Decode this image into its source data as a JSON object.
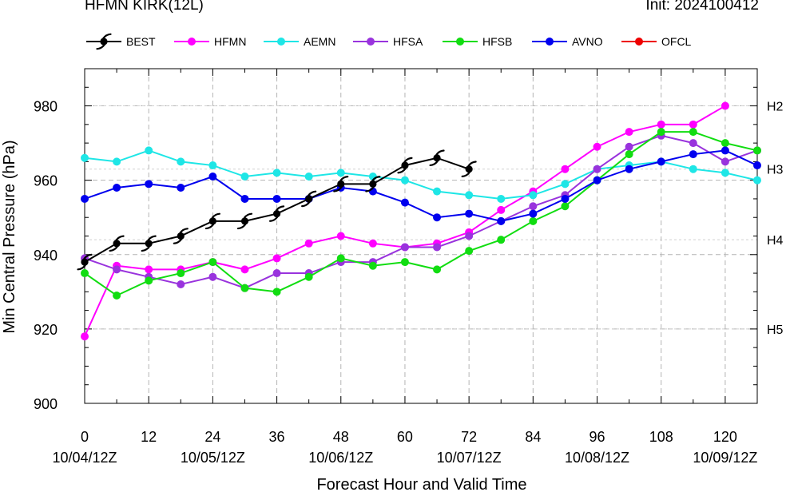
{
  "header": {
    "title": "HFMN KIRK(12L)",
    "init": "Init: 2024100412"
  },
  "chart_data": {
    "type": "line",
    "xlabel": "Forecast Hour and Valid Time",
    "ylabel": "Min Central Pressure (hPa)",
    "xlim": [
      0,
      126
    ],
    "ylim": [
      900,
      990
    ],
    "x_ticks": [
      0,
      12,
      24,
      36,
      48,
      60,
      72,
      84,
      96,
      108,
      120
    ],
    "x_tick_labels": [
      "0",
      "12",
      "24",
      "36",
      "48",
      "60",
      "72",
      "84",
      "96",
      "108",
      "120"
    ],
    "date_ticks": [
      {
        "x": 0,
        "label": "10/04/12Z"
      },
      {
        "x": 24,
        "label": "10/05/12Z"
      },
      {
        "x": 48,
        "label": "10/06/12Z"
      },
      {
        "x": 72,
        "label": "10/07/12Z"
      },
      {
        "x": 96,
        "label": "10/08/12Z"
      },
      {
        "x": 120,
        "label": "10/09/12Z"
      }
    ],
    "y_ticks": [
      900,
      920,
      940,
      960,
      980
    ],
    "y_tick_labels": [
      "900",
      "920",
      "940",
      "960",
      "980"
    ],
    "category_lines": [
      {
        "label": "H2",
        "value": 980
      },
      {
        "label": "H3",
        "value": 963
      },
      {
        "label": "H4",
        "value": 944
      },
      {
        "label": "H5",
        "value": 920
      }
    ],
    "legend": [
      "BEST",
      "HFMN",
      "AEMN",
      "HFSA",
      "HFSB",
      "AVNO",
      "OFCL"
    ],
    "legend_position": "top",
    "series": [
      {
        "name": "BEST",
        "color": "#000000",
        "marker": "hurricane-symbol",
        "x": [
          0,
          6,
          12,
          18,
          24,
          30,
          36,
          42,
          48,
          54,
          60,
          66,
          72
        ],
        "y": [
          938,
          943,
          943,
          945,
          949,
          949,
          951,
          955,
          959,
          959,
          964,
          966,
          963
        ]
      },
      {
        "name": "HFMN",
        "color": "#ff00ff",
        "marker": "circle",
        "x": [
          0,
          6,
          12,
          18,
          24,
          30,
          36,
          42,
          48,
          54,
          60,
          66,
          72,
          78,
          84,
          90,
          96,
          102,
          108,
          114,
          120
        ],
        "y": [
          918,
          937,
          936,
          936,
          938,
          936,
          939,
          943,
          945,
          943,
          942,
          943,
          946,
          952,
          957,
          963,
          969,
          973,
          975,
          975,
          980
        ]
      },
      {
        "name": "AEMN",
        "color": "#1ee6e6",
        "marker": "circle",
        "x": [
          0,
          6,
          12,
          18,
          24,
          30,
          36,
          42,
          48,
          54,
          60,
          66,
          72,
          78,
          84,
          90,
          96,
          102,
          108,
          114,
          120,
          126
        ],
        "y": [
          966,
          965,
          968,
          965,
          964,
          961,
          962,
          961,
          962,
          961,
          960,
          957,
          956,
          955,
          956,
          959,
          963,
          964,
          965,
          963,
          962,
          960
        ]
      },
      {
        "name": "HFSA",
        "color": "#9933dd",
        "marker": "circle",
        "x": [
          0,
          6,
          12,
          18,
          24,
          30,
          36,
          42,
          48,
          54,
          60,
          66,
          72,
          78,
          84,
          90,
          96,
          102,
          108,
          114,
          120,
          126
        ],
        "y": [
          939,
          936,
          934,
          932,
          934,
          931,
          935,
          935,
          938,
          938,
          942,
          942,
          945,
          949,
          953,
          956,
          963,
          969,
          972,
          970,
          965,
          968
        ]
      },
      {
        "name": "HFSB",
        "color": "#11dd11",
        "marker": "circle",
        "x": [
          0,
          6,
          12,
          18,
          24,
          30,
          36,
          42,
          48,
          54,
          60,
          66,
          72,
          78,
          84,
          90,
          96,
          102,
          108,
          114,
          120,
          126
        ],
        "y": [
          935,
          929,
          933,
          935,
          938,
          931,
          930,
          934,
          939,
          937,
          938,
          936,
          941,
          944,
          949,
          953,
          960,
          967,
          973,
          973,
          970,
          968
        ]
      },
      {
        "name": "AVNO",
        "color": "#0000ee",
        "marker": "circle",
        "x": [
          0,
          6,
          12,
          18,
          24,
          30,
          36,
          42,
          48,
          54,
          60,
          66,
          72,
          78,
          84,
          90,
          96,
          102,
          108,
          114,
          120,
          126
        ],
        "y": [
          955,
          958,
          959,
          958,
          961,
          955,
          955,
          955,
          958,
          957,
          954,
          950,
          951,
          949,
          951,
          955,
          960,
          963,
          965,
          967,
          968,
          964
        ]
      },
      {
        "name": "OFCL",
        "color": "#ee0000",
        "marker": "circle",
        "x": [],
        "y": []
      }
    ]
  }
}
